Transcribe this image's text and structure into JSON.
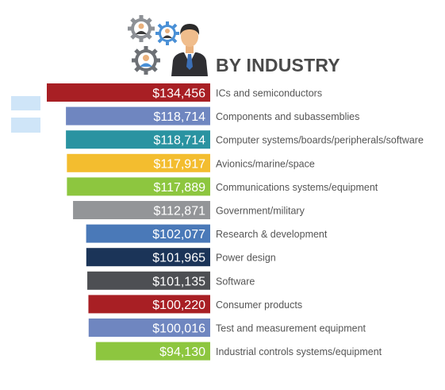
{
  "chart_data": {
    "type": "bar",
    "orientation": "horizontal",
    "title": "BY INDUSTRY",
    "categories": [
      "ICs and semiconductors",
      "Components and subassemblies",
      "Computer systems/boards/peripherals/software",
      "Avionics/marine/space",
      "Communications systems/equipment",
      "Government/military",
      "Research & development",
      "Power design",
      "Software",
      "Consumer products",
      "Test and measurement equipment",
      "Industrial controls systems/equipment"
    ],
    "values": [
      134456,
      118714,
      118714,
      117917,
      117889,
      112871,
      102077,
      101965,
      101135,
      100220,
      100016,
      94130
    ],
    "value_labels": [
      "$134,456",
      "$118,714",
      "$118,714",
      "$117,917",
      "$117,889",
      "$112,871",
      "$102,077",
      "$101,965",
      "$101,135",
      "$100,220",
      "$100,016",
      "$94,130"
    ],
    "colors": [
      "#a81f24",
      "#6f86c0",
      "#2a93a1",
      "#f3bd2f",
      "#8dc63f",
      "#939598",
      "#4a79b8",
      "#1b3458",
      "#4d4f53",
      "#a81f24",
      "#6f86c0",
      "#8dc63f"
    ],
    "legend": "none",
    "grid": false
  },
  "illustration": {
    "icons": [
      "gear-icon",
      "businessman-icon",
      "person-icon"
    ]
  }
}
